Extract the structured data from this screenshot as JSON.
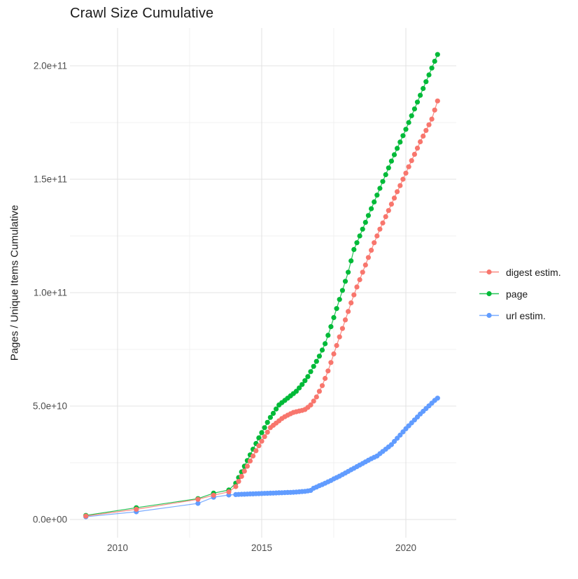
{
  "title": "Crawl Size Cumulative",
  "axes": {
    "y_title": "Pages / Unique Items Cumulative",
    "y_ticks": [
      {
        "label": "0.0e+00",
        "value_e9": 0
      },
      {
        "label": "5.0e+10",
        "value_e9": 50
      },
      {
        "label": "1.0e+11",
        "value_e9": 100
      },
      {
        "label": "1.5e+11",
        "value_e9": 150
      },
      {
        "label": "2.0e+11",
        "value_e9": 200
      }
    ],
    "x_ticks": [
      {
        "label": "2010",
        "value": 2010
      },
      {
        "label": "2015",
        "value": 2015
      },
      {
        "label": "2020",
        "value": 2020
      }
    ]
  },
  "legend": [
    {
      "label": "digest estim.",
      "color": "#F8766D"
    },
    {
      "label": "page",
      "color": "#00BA38"
    },
    {
      "label": "url estim.",
      "color": "#619CFF"
    }
  ],
  "colors": {
    "digest": "#F8766D",
    "page": "#00BA38",
    "url": "#619CFF",
    "grid_major": "#E3E3E3",
    "grid_minor": "#F0F0F0",
    "tick_text": "#4D4D4D",
    "background": "#FFFFFF"
  },
  "chart_data": {
    "type": "scatter",
    "title": "Crawl Size Cumulative",
    "xlabel": "",
    "ylabel": "Pages / Unique Items Cumulative",
    "x_unit": "year (decimal, one point per crawl)",
    "y_unit": "count in billions (1e9); axis shown in scientific notation",
    "xlim": [
      2008.35,
      2021.75
    ],
    "ylim_e9": [
      -8,
      216.7
    ],
    "grid": {
      "on": true,
      "x_major": [
        2010,
        2015,
        2020
      ],
      "x_minor": [
        2012.5,
        2017.5
      ],
      "y_major_e9": [
        0,
        50,
        100,
        150,
        200
      ],
      "y_minor_e9": [
        25,
        75,
        125,
        175
      ]
    },
    "legend_position": "right",
    "marker": "point-with-line",
    "draw_order": [
      "url estim.",
      "page",
      "digest estim."
    ],
    "series": [
      {
        "name": "url estim.",
        "color": "#619CFF",
        "points": [
          [
            2008.9,
            1.2
          ],
          [
            2010.65,
            3.4
          ],
          [
            2012.79,
            7.1
          ],
          [
            2013.33,
            9.8
          ],
          [
            2013.86,
            10.8
          ],
          [
            2014.1,
            11.0
          ],
          [
            2014.2,
            11.05
          ],
          [
            2014.3,
            11.1
          ],
          [
            2014.4,
            11.15
          ],
          [
            2014.5,
            11.2
          ],
          [
            2014.6,
            11.25
          ],
          [
            2014.7,
            11.3
          ],
          [
            2014.8,
            11.35
          ],
          [
            2014.9,
            11.4
          ],
          [
            2015.0,
            11.45
          ],
          [
            2015.1,
            11.5
          ],
          [
            2015.2,
            11.55
          ],
          [
            2015.3,
            11.6
          ],
          [
            2015.4,
            11.65
          ],
          [
            2015.5,
            11.7
          ],
          [
            2015.6,
            11.75
          ],
          [
            2015.7,
            11.8
          ],
          [
            2015.8,
            11.85
          ],
          [
            2015.9,
            11.9
          ],
          [
            2016.0,
            11.95
          ],
          [
            2016.1,
            12.0
          ],
          [
            2016.2,
            12.1
          ],
          [
            2016.3,
            12.2
          ],
          [
            2016.4,
            12.3
          ],
          [
            2016.5,
            12.4
          ],
          [
            2016.6,
            12.6
          ],
          [
            2016.7,
            12.8
          ],
          [
            2016.8,
            13.8
          ],
          [
            2016.9,
            14.3
          ],
          [
            2017.0,
            14.9
          ],
          [
            2017.1,
            15.4
          ],
          [
            2017.2,
            16.0
          ],
          [
            2017.3,
            16.6
          ],
          [
            2017.4,
            17.2
          ],
          [
            2017.5,
            17.9
          ],
          [
            2017.6,
            18.5
          ],
          [
            2017.7,
            19.1
          ],
          [
            2017.8,
            19.8
          ],
          [
            2017.9,
            20.5
          ],
          [
            2018.0,
            21.2
          ],
          [
            2018.1,
            21.9
          ],
          [
            2018.2,
            22.6
          ],
          [
            2018.3,
            23.3
          ],
          [
            2018.4,
            24.0
          ],
          [
            2018.5,
            24.7
          ],
          [
            2018.6,
            25.4
          ],
          [
            2018.7,
            26.1
          ],
          [
            2018.8,
            26.8
          ],
          [
            2018.9,
            27.4
          ],
          [
            2019.0,
            28.0
          ],
          [
            2019.1,
            29.0
          ],
          [
            2019.2,
            30.0
          ],
          [
            2019.3,
            31.0
          ],
          [
            2019.4,
            32.0
          ],
          [
            2019.5,
            33.0
          ],
          [
            2019.6,
            34.4
          ],
          [
            2019.7,
            35.8
          ],
          [
            2019.8,
            37.2
          ],
          [
            2019.9,
            38.6
          ],
          [
            2020.0,
            40.0
          ],
          [
            2020.1,
            41.3
          ],
          [
            2020.2,
            42.6
          ],
          [
            2020.3,
            43.9
          ],
          [
            2020.4,
            45.2
          ],
          [
            2020.5,
            46.5
          ],
          [
            2020.6,
            47.7
          ],
          [
            2020.7,
            48.9
          ],
          [
            2020.8,
            50.1
          ],
          [
            2020.9,
            51.3
          ],
          [
            2021.0,
            52.5
          ],
          [
            2021.1,
            53.5
          ]
        ]
      },
      {
        "name": "page",
        "color": "#00BA38",
        "points": [
          [
            2008.9,
            1.8
          ],
          [
            2010.65,
            5.2
          ],
          [
            2012.79,
            9.2
          ],
          [
            2013.33,
            11.6
          ],
          [
            2013.86,
            13.0
          ],
          [
            2014.1,
            16.0
          ],
          [
            2014.2,
            18.5
          ],
          [
            2014.3,
            21.0
          ],
          [
            2014.4,
            23.5
          ],
          [
            2014.5,
            26.0
          ],
          [
            2014.6,
            28.5
          ],
          [
            2014.7,
            31.0
          ],
          [
            2014.8,
            33.5
          ],
          [
            2014.9,
            36.0
          ],
          [
            2015.0,
            38.3
          ],
          [
            2015.1,
            40.5
          ],
          [
            2015.2,
            42.8
          ],
          [
            2015.3,
            45.0
          ],
          [
            2015.4,
            46.8
          ],
          [
            2015.5,
            48.7
          ],
          [
            2015.6,
            50.5
          ],
          [
            2015.7,
            51.5
          ],
          [
            2015.8,
            52.5
          ],
          [
            2015.9,
            53.5
          ],
          [
            2016.0,
            54.5
          ],
          [
            2016.1,
            55.5
          ],
          [
            2016.2,
            56.5
          ],
          [
            2016.3,
            58.0
          ],
          [
            2016.4,
            59.5
          ],
          [
            2016.5,
            61.2
          ],
          [
            2016.6,
            63.0
          ],
          [
            2016.7,
            65.2
          ],
          [
            2016.8,
            67.5
          ],
          [
            2016.9,
            69.7
          ],
          [
            2017.0,
            72.0
          ],
          [
            2017.1,
            74.7
          ],
          [
            2017.2,
            77.5
          ],
          [
            2017.3,
            81.2
          ],
          [
            2017.4,
            85.0
          ],
          [
            2017.5,
            89.0
          ],
          [
            2017.6,
            93.0
          ],
          [
            2017.7,
            97.0
          ],
          [
            2017.8,
            101.0
          ],
          [
            2017.9,
            105.0
          ],
          [
            2018.0,
            109.0
          ],
          [
            2018.1,
            114.0
          ],
          [
            2018.2,
            119.0
          ],
          [
            2018.3,
            122.0
          ],
          [
            2018.4,
            125.0
          ],
          [
            2018.5,
            128.0
          ],
          [
            2018.6,
            131.0
          ],
          [
            2018.7,
            134.0
          ],
          [
            2018.8,
            137.0
          ],
          [
            2018.9,
            140.0
          ],
          [
            2019.0,
            143.0
          ],
          [
            2019.1,
            146.0
          ],
          [
            2019.2,
            149.0
          ],
          [
            2019.3,
            152.0
          ],
          [
            2019.4,
            155.0
          ],
          [
            2019.5,
            158.0
          ],
          [
            2019.6,
            160.8
          ],
          [
            2019.7,
            163.6
          ],
          [
            2019.8,
            166.4
          ],
          [
            2019.9,
            169.2
          ],
          [
            2020.0,
            172.0
          ],
          [
            2020.1,
            175.0
          ],
          [
            2020.2,
            178.0
          ],
          [
            2020.3,
            181.0
          ],
          [
            2020.4,
            184.0
          ],
          [
            2020.5,
            187.0
          ],
          [
            2020.6,
            190.0
          ],
          [
            2020.7,
            193.0
          ],
          [
            2020.8,
            196.0
          ],
          [
            2020.9,
            199.0
          ],
          [
            2021.0,
            202.0
          ],
          [
            2021.1,
            205.0
          ]
        ]
      },
      {
        "name": "digest estim.",
        "color": "#F8766D",
        "points": [
          [
            2008.9,
            1.5
          ],
          [
            2010.65,
            4.5
          ],
          [
            2012.79,
            8.9
          ],
          [
            2013.33,
            10.7
          ],
          [
            2013.86,
            12.2
          ],
          [
            2014.1,
            14.5
          ],
          [
            2014.2,
            16.8
          ],
          [
            2014.3,
            19.0
          ],
          [
            2014.4,
            21.3
          ],
          [
            2014.5,
            23.5
          ],
          [
            2014.6,
            25.8
          ],
          [
            2014.7,
            28.0
          ],
          [
            2014.8,
            30.3
          ],
          [
            2014.9,
            32.5
          ],
          [
            2015.0,
            34.5
          ],
          [
            2015.1,
            36.5
          ],
          [
            2015.2,
            38.5
          ],
          [
            2015.3,
            40.5
          ],
          [
            2015.4,
            41.5
          ],
          [
            2015.5,
            42.5
          ],
          [
            2015.6,
            43.5
          ],
          [
            2015.7,
            44.5
          ],
          [
            2015.8,
            45.3
          ],
          [
            2015.9,
            46.0
          ],
          [
            2016.0,
            46.6
          ],
          [
            2016.1,
            47.2
          ],
          [
            2016.2,
            47.5
          ],
          [
            2016.3,
            47.8
          ],
          [
            2016.4,
            48.1
          ],
          [
            2016.5,
            48.5
          ],
          [
            2016.6,
            49.4
          ],
          [
            2016.7,
            50.5
          ],
          [
            2016.8,
            52.2
          ],
          [
            2016.9,
            54.0
          ],
          [
            2017.0,
            56.5
          ],
          [
            2017.1,
            59.0
          ],
          [
            2017.2,
            62.2
          ],
          [
            2017.3,
            65.5
          ],
          [
            2017.4,
            69.2
          ],
          [
            2017.5,
            73.0
          ],
          [
            2017.6,
            76.7
          ],
          [
            2017.7,
            80.5
          ],
          [
            2017.8,
            84.2
          ],
          [
            2017.9,
            88.0
          ],
          [
            2018.0,
            91.7
          ],
          [
            2018.1,
            95.5
          ],
          [
            2018.2,
            99.0
          ],
          [
            2018.3,
            102.5
          ],
          [
            2018.4,
            105.7
          ],
          [
            2018.5,
            109.0
          ],
          [
            2018.6,
            112.2
          ],
          [
            2018.7,
            115.5
          ],
          [
            2018.8,
            118.7
          ],
          [
            2018.9,
            122.0
          ],
          [
            2019.0,
            125.0
          ],
          [
            2019.1,
            128.0
          ],
          [
            2019.2,
            130.7
          ],
          [
            2019.3,
            133.5
          ],
          [
            2019.4,
            136.2
          ],
          [
            2019.5,
            139.0
          ],
          [
            2019.6,
            141.7
          ],
          [
            2019.7,
            144.5
          ],
          [
            2019.8,
            147.2
          ],
          [
            2019.9,
            150.0
          ],
          [
            2020.0,
            152.7
          ],
          [
            2020.1,
            155.5
          ],
          [
            2020.2,
            158.2
          ],
          [
            2020.3,
            161.0
          ],
          [
            2020.4,
            163.7
          ],
          [
            2020.5,
            166.5
          ],
          [
            2020.6,
            169.0
          ],
          [
            2020.7,
            171.5
          ],
          [
            2020.8,
            174.0
          ],
          [
            2020.9,
            176.5
          ],
          [
            2021.0,
            180.5
          ],
          [
            2021.1,
            184.5
          ]
        ]
      }
    ]
  }
}
